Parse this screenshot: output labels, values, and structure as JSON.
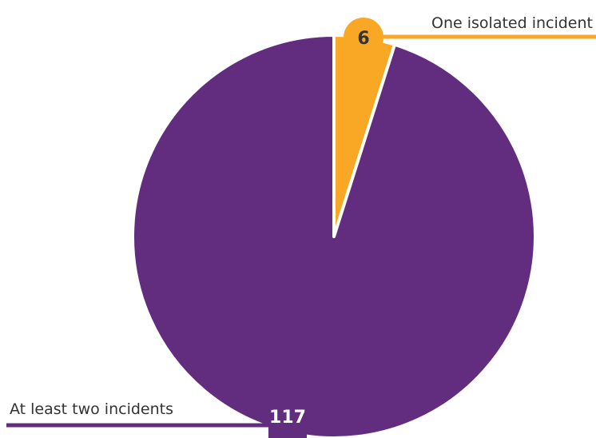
{
  "chart_data": {
    "type": "pie",
    "categories": [
      "One isolated incident",
      "At least two incidents"
    ],
    "values": [
      6,
      117
    ],
    "labels": [
      "6",
      "117"
    ],
    "colors": [
      "#F9A825",
      "#632D7F"
    ],
    "label_text_colors": [
      "#333333",
      "#ffffff"
    ],
    "start_angle_deg": 0,
    "direction": "clockwise",
    "legend": "none"
  }
}
